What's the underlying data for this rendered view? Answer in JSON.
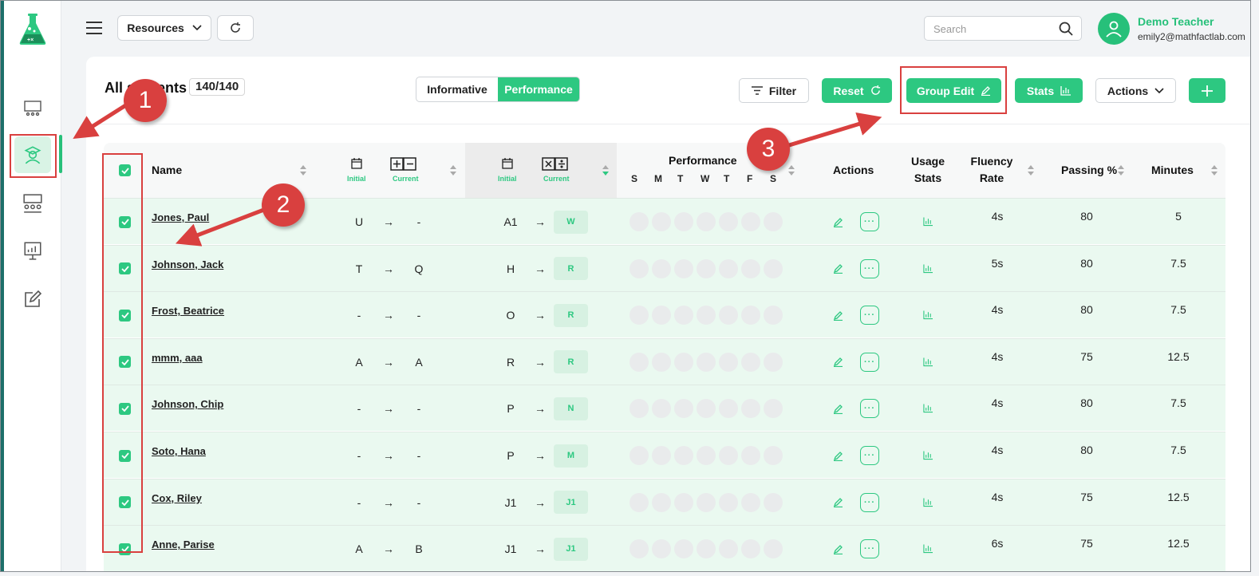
{
  "topbar": {
    "resources_label": "Resources",
    "search_placeholder": "Search",
    "user_name": "Demo Teacher",
    "user_email": "emily2@mathfactlab.com"
  },
  "toolbar": {
    "title": "All students",
    "count": "140/140",
    "seg_informative": "Informative",
    "seg_performance": "Performance",
    "filter": "Filter",
    "reset": "Reset",
    "group_edit": "Group Edit",
    "stats": "Stats",
    "actions": "Actions"
  },
  "table": {
    "headers": {
      "name": "Name",
      "initial": "Initial",
      "current": "Current",
      "performance": "Performance",
      "days": [
        "S",
        "M",
        "T",
        "W",
        "T",
        "F",
        "S"
      ],
      "actions": "Actions",
      "usage1": "Usage",
      "usage2": "Stats",
      "fluency1": "Fluency",
      "fluency2": "Rate",
      "passing": "Passing %",
      "minutes": "Minutes"
    },
    "rows": [
      {
        "name": "Jones, Paul",
        "ai": "U",
        "ac": "-",
        "mi": "A1",
        "mc": "W",
        "fluency": "4s",
        "passing": "80",
        "minutes": "5"
      },
      {
        "name": "Johnson, Jack",
        "ai": "T",
        "ac": "Q",
        "mi": "H",
        "mc": "R",
        "fluency": "5s",
        "passing": "80",
        "minutes": "7.5"
      },
      {
        "name": "Frost, Beatrice",
        "ai": "-",
        "ac": "-",
        "mi": "O",
        "mc": "R",
        "fluency": "4s",
        "passing": "80",
        "minutes": "7.5"
      },
      {
        "name": "mmm, aaa",
        "ai": "A",
        "ac": "A",
        "mi": "R",
        "mc": "R",
        "fluency": "4s",
        "passing": "75",
        "minutes": "12.5"
      },
      {
        "name": "Johnson, Chip",
        "ai": "-",
        "ac": "-",
        "mi": "P",
        "mc": "N",
        "fluency": "4s",
        "passing": "80",
        "minutes": "7.5"
      },
      {
        "name": "Soto, Hana",
        "ai": "-",
        "ac": "-",
        "mi": "P",
        "mc": "M",
        "fluency": "4s",
        "passing": "80",
        "minutes": "7.5"
      },
      {
        "name": "Cox, Riley",
        "ai": "-",
        "ac": "-",
        "mi": "J1",
        "mc": "J1",
        "fluency": "4s",
        "passing": "75",
        "minutes": "12.5"
      },
      {
        "name": "Anne, Parise",
        "ai": "A",
        "ac": "B",
        "mi": "J1",
        "mc": "J1",
        "fluency": "6s",
        "passing": "75",
        "minutes": "12.5"
      }
    ]
  },
  "annotations": {
    "one": "1",
    "two": "2",
    "three": "3"
  },
  "colors": {
    "accent": "#2dc881",
    "annotation": "#d9403f"
  }
}
